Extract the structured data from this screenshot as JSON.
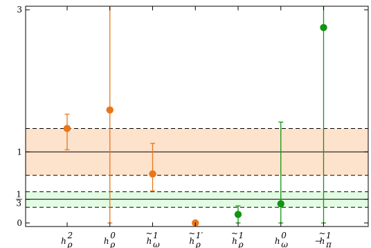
{
  "chart_data": {
    "type": "scatter",
    "title": "",
    "xlabel": "",
    "ylabel": "",
    "ylim": [
      -0.05,
      3.05
    ],
    "yticks": [
      {
        "value": 0,
        "label": "0"
      },
      {
        "value": 0.3333,
        "label_num": "1",
        "label_den": "3"
      },
      {
        "value": 1,
        "label": "1"
      },
      {
        "value": 3,
        "label": "3"
      }
    ],
    "categories": [
      {
        "base": "h",
        "tilde": false,
        "minus": false,
        "sub": "ρ",
        "sup": "2"
      },
      {
        "base": "h",
        "tilde": false,
        "minus": false,
        "sub": "ρ",
        "sup": "0"
      },
      {
        "base": "h",
        "tilde": true,
        "minus": false,
        "sub": "ω",
        "sup": "1"
      },
      {
        "base": "h",
        "tilde": true,
        "minus": false,
        "sub": "ρ",
        "sup": "1′"
      },
      {
        "base": "h",
        "tilde": true,
        "minus": false,
        "sub": "ρ",
        "sup": "1"
      },
      {
        "base": "h",
        "tilde": false,
        "minus": false,
        "sub": "ω",
        "sup": "0"
      },
      {
        "base": "h",
        "tilde": true,
        "minus": true,
        "sub": "π",
        "sup": "1"
      }
    ],
    "bands": [
      {
        "center": 1,
        "low": 0.67,
        "high": 1.33,
        "color": "#fde2cc"
      },
      {
        "center": 0.3333,
        "low": 0.22,
        "high": 0.44,
        "color": "#e2fbe2"
      }
    ],
    "points": [
      {
        "category": 0,
        "value": 1.33,
        "err_low": 1.03,
        "err_high": 1.53,
        "color": "#e8771a"
      },
      {
        "category": 1,
        "value": 1.59,
        "err_low": 0.0,
        "err_high": 3.1,
        "color": "#e8771a"
      },
      {
        "category": 2,
        "value": 0.69,
        "err_low": 0.45,
        "err_high": 1.12,
        "color": "#e8771a"
      },
      {
        "category": 3,
        "value": 0.0,
        "err_low": null,
        "err_high": null,
        "color": "#e8771a"
      },
      {
        "category": 4,
        "value": 0.12,
        "err_low": 0.0,
        "err_high": 0.24,
        "color": "#129512"
      },
      {
        "category": 5,
        "value": 0.27,
        "err_low": 0.0,
        "err_high": 1.42,
        "color": "#129512"
      },
      {
        "category": 6,
        "value": 2.75,
        "err_low": 0.0,
        "err_high": 3.1,
        "color": "#129512"
      }
    ]
  }
}
